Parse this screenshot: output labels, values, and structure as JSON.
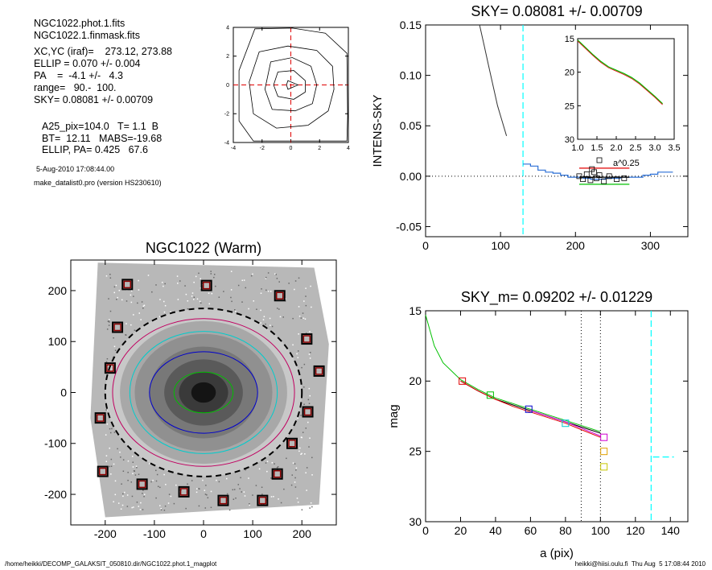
{
  "info": {
    "files": [
      "NGC1022.phot.1.fits",
      "NGC1022.1.finmask.fits"
    ],
    "params": [
      "XC,YC (iraf)=    273.12, 273.88",
      "ELLIP = 0.070 +/- 0.004",
      "PA    =  -4.1 +/-   4.3",
      "range=   90.-  100.",
      "SKY= 0.08081 +/- 0.00709"
    ],
    "extra": [
      "A25_pix=104.0   T= 1.1  B",
      "BT=  12.11   MABS=-19.68",
      "ELLIP, PA= 0.425   67.6"
    ],
    "date": "5-Aug-2010 17:08:44.00",
    "program": "make_datalist0.pro (version HS230610)"
  },
  "footer": {
    "left": "/home/heikki/DECOMP_GALAKSIT_050810.dir/NGC1022.phot.1_magplot",
    "right": "heikki@hiisi.oulu.fi  Thu Aug  5 17:08:44 2010"
  },
  "colors": {
    "sky_line": "#00ffff",
    "green": "#00c000",
    "red": "#e00000",
    "blue": "#0000cc",
    "magenta": "#d000d0",
    "orange": "#e0a000",
    "dark_red_box": "#8b0000"
  },
  "chart_data": [
    {
      "id": "contour",
      "type": "contour",
      "title": "",
      "xlim": [
        -4,
        4
      ],
      "ylim": [
        -4,
        4
      ],
      "xticks": [
        -4,
        -2,
        0,
        2,
        4
      ],
      "yticks": [
        -4,
        -2,
        0,
        2,
        4
      ],
      "tick_labels_x": [
        "-4",
        "-2",
        "0",
        "2",
        "4"
      ],
      "tick_labels_y": [
        "-4",
        "-2",
        "0",
        "2",
        "4"
      ],
      "crosshair": [
        0,
        0
      ],
      "contours": [
        [
          [
            -0.2,
            0.3
          ],
          [
            0.5,
            0
          ],
          [
            -0.2,
            -0.3
          ],
          [
            -0.3,
            0
          ]
        ],
        [
          [
            -0.9,
            0.9
          ],
          [
            0.2,
            1.0
          ],
          [
            1.0,
            0.3
          ],
          [
            1.0,
            -0.5
          ],
          [
            0.2,
            -1.0
          ],
          [
            -0.9,
            -0.8
          ],
          [
            -1.2,
            0
          ]
        ],
        [
          [
            -1.4,
            1.6
          ],
          [
            0.1,
            1.9
          ],
          [
            1.4,
            1.3
          ],
          [
            1.8,
            0
          ],
          [
            1.5,
            -1.3
          ],
          [
            0.3,
            -1.8
          ],
          [
            -1.3,
            -1.7
          ],
          [
            -1.8,
            -0.3
          ]
        ],
        [
          [
            -2.2,
            2.3
          ],
          [
            -0.2,
            2.7
          ],
          [
            1.8,
            2.4
          ],
          [
            2.9,
            1.3
          ],
          [
            3.0,
            -0.3
          ],
          [
            2.6,
            -1.8
          ],
          [
            1.2,
            -2.8
          ],
          [
            -1.0,
            -3.0
          ],
          [
            -2.6,
            -2.0
          ],
          [
            -2.9,
            0.2
          ]
        ],
        [
          [
            -2.5,
            3.9
          ],
          [
            0.1,
            3.95
          ],
          [
            2.4,
            3.6
          ],
          [
            3.9,
            2.2
          ],
          [
            3.95,
            -2.2
          ],
          [
            3.9,
            -3.9
          ],
          [
            -2.6,
            -3.9
          ],
          [
            -3.6,
            -2.5
          ],
          [
            -3.6,
            1.0
          ]
        ]
      ]
    },
    {
      "id": "sky",
      "type": "line",
      "title": "SKY= 0.08081 +/- 0.00709",
      "xlabel": "",
      "ylabel": "INTENS-SKY",
      "xlim": [
        0,
        350
      ],
      "ylim": [
        -0.06,
        0.15
      ],
      "xticks": [
        0,
        100,
        200,
        300
      ],
      "yticks": [
        -0.05,
        0,
        0.05,
        0.1,
        0.15
      ],
      "ytick_labels": [
        "-0.05",
        "0.00",
        "0.05",
        "0.10",
        "0.15"
      ],
      "sky_marker_x": 130,
      "zero_line": 0,
      "profile": {
        "x": [
          72,
          78,
          84,
          90,
          96,
          102,
          108
        ],
        "y": [
          0.15,
          0.13,
          0.11,
          0.09,
          0.07,
          0.055,
          0.04
        ]
      },
      "steps": {
        "x": [
          130,
          140,
          150,
          160,
          170,
          180,
          190,
          200,
          210,
          220,
          230,
          240,
          250,
          260,
          270,
          280,
          290,
          300,
          310,
          320
        ],
        "y": [
          0.012,
          0.01,
          0.006,
          0.004,
          0.003,
          0.001,
          -0.001,
          -0.001,
          -0.002,
          -0.003,
          -0.003,
          -0.002,
          -0.002,
          -0.001,
          -0.001,
          -0.001,
          0.001,
          0.002,
          0.004,
          0.004
        ]
      },
      "boxes": {
        "x": [
          205,
          210,
          215,
          220,
          222,
          225,
          228,
          232,
          238,
          245,
          255,
          265
        ],
        "y": [
          0.0,
          -0.003,
          0.002,
          -0.004,
          0.007,
          0.004,
          -0.002,
          0.001,
          -0.005,
          0.0,
          -0.003,
          -0.002
        ]
      },
      "hbars": [
        {
          "y": 0.008,
          "x0": 205,
          "x1": 272,
          "color": "#e00000"
        },
        {
          "y": -0.001,
          "x0": 205,
          "x1": 272,
          "color": "#000000"
        },
        {
          "y": -0.008,
          "x0": 205,
          "x1": 272,
          "color": "#00c000"
        }
      ],
      "inset": {
        "xlabel": "a^0.25",
        "xlim": [
          1.0,
          3.5
        ],
        "ylim": [
          30,
          15
        ],
        "xticks": [
          1.0,
          1.5,
          2.0,
          2.5,
          3.0,
          3.5
        ],
        "xtick_labels": [
          "1.0",
          "1.5",
          "2.0",
          "2.5",
          "3.0",
          "3.5"
        ],
        "yticks": [
          15,
          20,
          25,
          30
        ],
        "curve": {
          "x": [
            1.0,
            1.2,
            1.4,
            1.6,
            1.8,
            2.0,
            2.2,
            2.4,
            2.6,
            2.8,
            3.0,
            3.2
          ],
          "y": [
            15.2,
            16.3,
            17.4,
            18.4,
            19.2,
            19.7,
            20.2,
            20.8,
            21.6,
            22.6,
            23.6,
            24.7
          ]
        }
      }
    },
    {
      "id": "image",
      "type": "image",
      "title": "NGC1022 (Warm)",
      "xlim": [
        -270,
        270
      ],
      "ylim": [
        -260,
        260
      ],
      "xticks": [
        -200,
        -100,
        0,
        100,
        200
      ],
      "yticks": [
        -200,
        -100,
        0,
        100,
        200
      ],
      "tick_labels_x": [
        "-200",
        "-100",
        "0",
        "100",
        "200"
      ],
      "tick_labels_y": [
        "-200",
        "-100",
        "0",
        "100",
        "200"
      ],
      "sky_boxes": [
        [
          -155,
          212
        ],
        [
          6,
          210
        ],
        [
          155,
          190
        ],
        [
          -175,
          128
        ],
        [
          210,
          105
        ],
        [
          -190,
          48
        ],
        [
          235,
          42
        ],
        [
          -210,
          -50
        ],
        [
          212,
          -38
        ],
        [
          180,
          -100
        ],
        [
          -205,
          -155
        ],
        [
          150,
          -160
        ],
        [
          -125,
          -180
        ],
        [
          -40,
          -195
        ],
        [
          40,
          -212
        ],
        [
          120,
          -212
        ]
      ],
      "ellipses": [
        {
          "a": 60,
          "b": 40,
          "color": "#00c000"
        },
        {
          "a": 110,
          "b": 80,
          "color": "#0000cc"
        },
        {
          "a": 150,
          "b": 120,
          "color": "#00cccc"
        },
        {
          "a": 185,
          "b": 145,
          "color": "#c00060"
        },
        {
          "a": 200,
          "b": 165,
          "color": "#000000",
          "dashed": true
        }
      ]
    },
    {
      "id": "mag",
      "type": "line",
      "title": "SKY_m=  0.09202 +/- 0.01229",
      "xlabel": "a (pix)",
      "ylabel": "mag",
      "xlim": [
        0,
        150
      ],
      "ylim": [
        30,
        15
      ],
      "xticks": [
        0,
        20,
        40,
        60,
        80,
        100,
        120,
        140
      ],
      "yticks": [
        15,
        20,
        25,
        30
      ],
      "vlines_dotted": [
        89,
        100
      ],
      "sky_marker_x": 129,
      "sky_hline": {
        "x0": 130,
        "x1": 142,
        "y": 25.4
      },
      "series": [
        {
          "color": "#00c000",
          "x": [
            0,
            5,
            10,
            20,
            30,
            40,
            50,
            60,
            70,
            80,
            90,
            100
          ],
          "y": [
            15.3,
            17.5,
            18.7,
            19.9,
            20.6,
            21.2,
            21.6,
            22.0,
            22.4,
            22.8,
            23.2,
            23.6
          ]
        },
        {
          "color": "#000000",
          "x": [
            20,
            30,
            40,
            50,
            60,
            70,
            80,
            90,
            100
          ],
          "y": [
            20.0,
            20.7,
            21.3,
            21.7,
            22.1,
            22.5,
            22.9,
            23.3,
            23.7
          ]
        },
        {
          "color": "#e00000",
          "x": [
            20,
            30,
            40,
            50,
            60,
            70,
            80,
            90,
            100
          ],
          "y": [
            20.0,
            20.7,
            21.3,
            21.8,
            22.2,
            22.6,
            23.0,
            23.5,
            24.0
          ]
        },
        {
          "color": "#d000d0",
          "x": [
            60,
            70,
            80,
            90,
            100
          ],
          "y": [
            22.1,
            22.5,
            22.9,
            23.4,
            23.9
          ]
        }
      ],
      "markers": [
        {
          "x": 21,
          "y": 20.0,
          "color": "#e00000"
        },
        {
          "x": 37,
          "y": 21.0,
          "color": "#00c000"
        },
        {
          "x": 59,
          "y": 22.0,
          "color": "#0000cc"
        },
        {
          "x": 80,
          "y": 23.0,
          "color": "#00cccc"
        },
        {
          "x": 102,
          "y": 24.0,
          "color": "#d000d0"
        },
        {
          "x": 102,
          "y": 25.0,
          "color": "#e0a000"
        },
        {
          "x": 102,
          "y": 26.1,
          "color": "#c8c800"
        }
      ]
    }
  ]
}
